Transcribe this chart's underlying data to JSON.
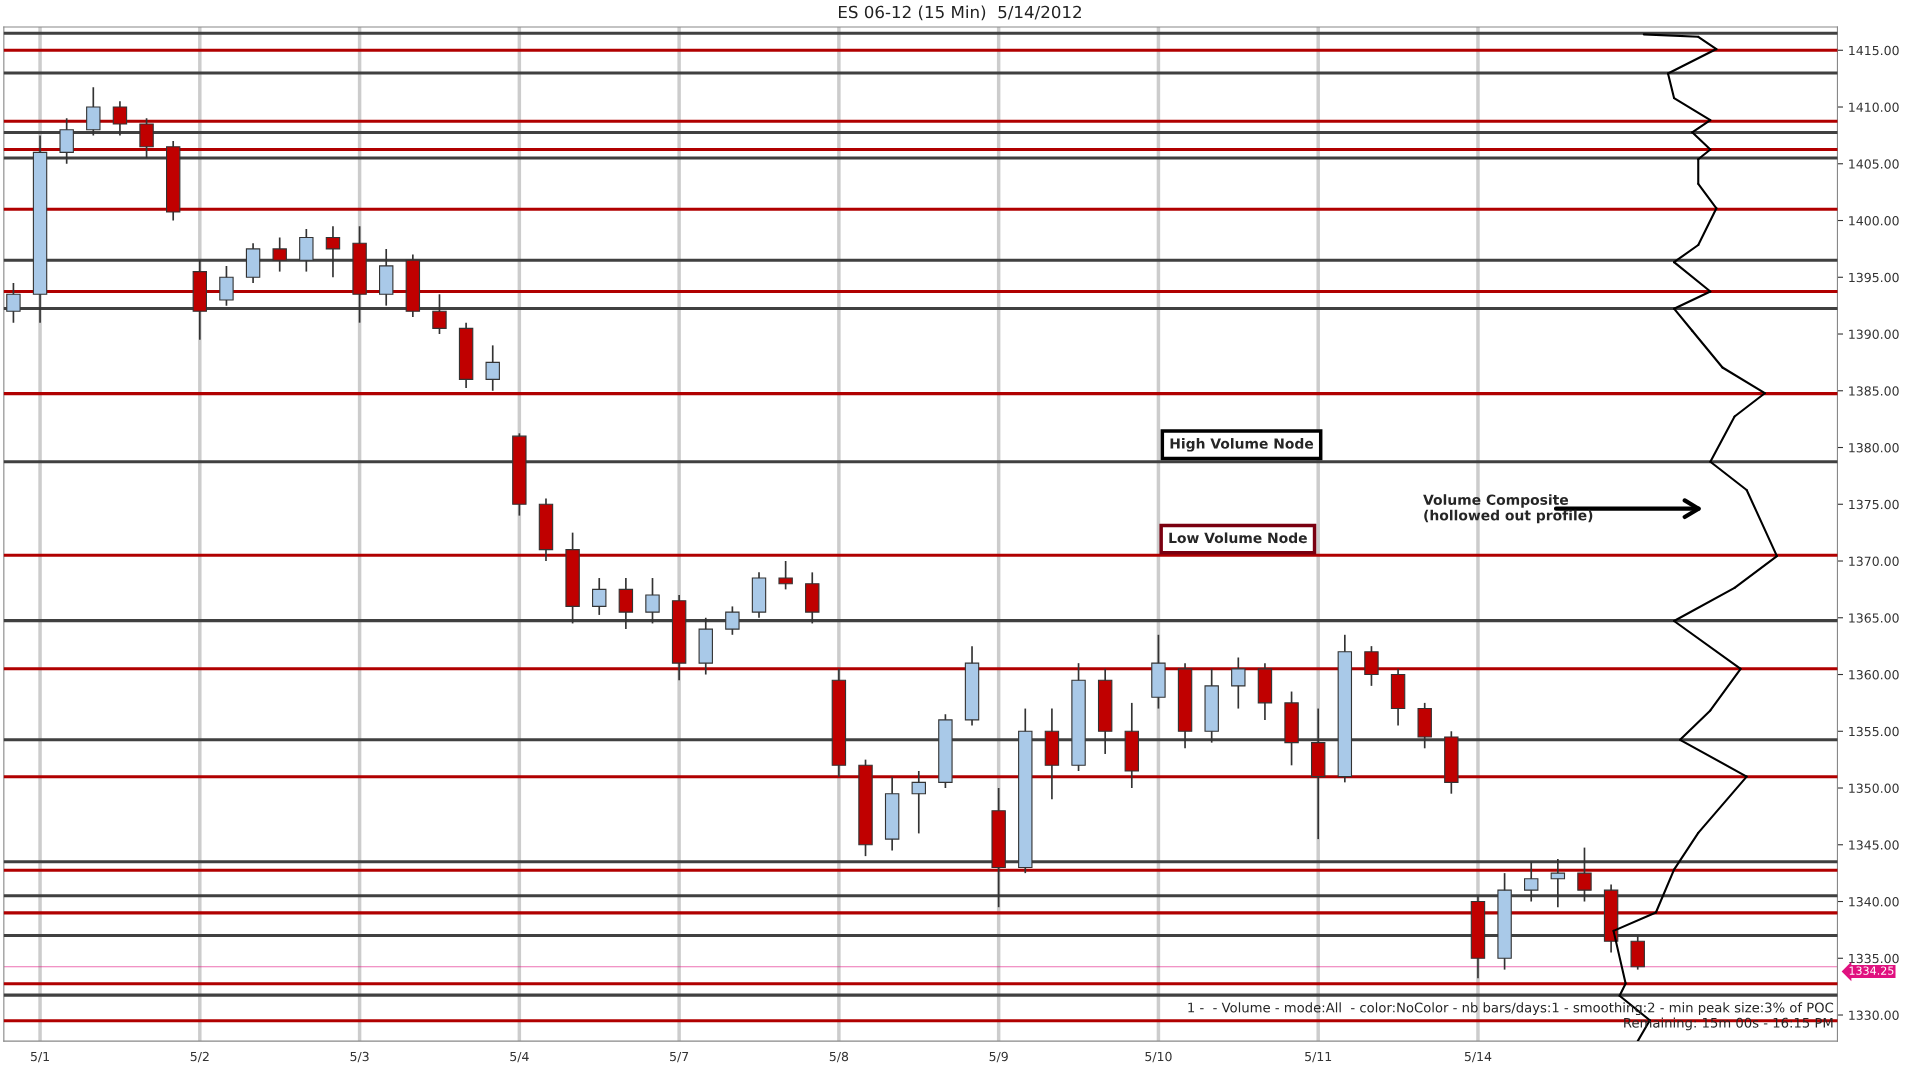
{
  "chart_data": {
    "type": "candlestick",
    "title": "ES 06-12 (15 Min)  5/14/2012",
    "categories": [
      null,
      "5/1",
      null,
      null,
      null,
      null,
      null,
      "5/2",
      null,
      null,
      null,
      null,
      null,
      "5/3",
      null,
      null,
      null,
      null,
      null,
      "5/4",
      null,
      null,
      null,
      null,
      null,
      "5/7",
      null,
      null,
      null,
      null,
      null,
      "5/8",
      null,
      null,
      null,
      null,
      null,
      "5/9",
      null,
      null,
      null,
      null,
      null,
      "5/10",
      null,
      null,
      null,
      null,
      null,
      "5/11",
      null,
      null,
      null,
      null,
      null,
      "5/14",
      null,
      null,
      null,
      null,
      null,
      null,
      null,
      null,
      null,
      null,
      null,
      null,
      null
    ],
    "ohlc": [
      [
        1392,
        1394.5,
        1391,
        1393.5
      ],
      [
        1393.5,
        1407.5,
        1391,
        1406
      ],
      [
        1406,
        1409,
        1405,
        1408
      ],
      [
        1408,
        1411.75,
        1407.5,
        1410
      ],
      [
        1410,
        1410.5,
        1407.5,
        1408.5
      ],
      [
        1408.5,
        1409,
        1405.5,
        1406.5
      ],
      [
        1406.5,
        1407,
        1400,
        1400.75
      ],
      [
        1395.5,
        1396.5,
        1389.5,
        1392
      ],
      [
        1393,
        1396,
        1392.5,
        1395
      ],
      [
        1395,
        1398,
        1394.5,
        1397.5
      ],
      [
        1397.5,
        1398.5,
        1395.5,
        1396.5
      ],
      [
        1396.5,
        1399.25,
        1395.5,
        1398.5
      ],
      [
        1398.5,
        1399.5,
        1395,
        1397.5
      ],
      [
        1398,
        1399.5,
        1391,
        1393.5
      ],
      [
        1393.5,
        1397.5,
        1392.5,
        1396
      ],
      [
        1396.5,
        1397,
        1391.5,
        1392
      ],
      [
        1392,
        1393.5,
        1390,
        1390.5
      ],
      [
        1390.5,
        1391,
        1385.25,
        1386
      ],
      [
        1386,
        1389,
        1385,
        1387.5
      ],
      [
        1381,
        1381.25,
        1374,
        1375
      ],
      [
        1375,
        1375.5,
        1370,
        1371
      ],
      [
        1371,
        1372.5,
        1364.5,
        1366
      ],
      [
        1366,
        1368.5,
        1365.25,
        1367.5
      ],
      [
        1367.5,
        1368.5,
        1364,
        1365.5
      ],
      [
        1365.5,
        1368.5,
        1364.5,
        1367
      ],
      [
        1366.5,
        1367,
        1359.5,
        1361
      ],
      [
        1361,
        1365,
        1360,
        1364
      ],
      [
        1364,
        1366,
        1363.5,
        1365.5
      ],
      [
        1365.5,
        1369,
        1365,
        1368.5
      ],
      [
        1368.5,
        1370,
        1367.5,
        1368
      ],
      [
        1368,
        1369,
        1364.5,
        1365.5
      ],
      [
        1359.5,
        1360.5,
        1351,
        1352
      ],
      [
        1352,
        1352.5,
        1344,
        1345
      ],
      [
        1345.5,
        1351,
        1344.5,
        1349.5
      ],
      [
        1349.5,
        1351.5,
        1346,
        1350.5
      ],
      [
        1350.5,
        1356.5,
        1350,
        1356
      ],
      [
        1356,
        1362.5,
        1355.5,
        1361
      ],
      [
        1348,
        1350,
        1339.5,
        1343
      ],
      [
        1343,
        1357,
        1342.5,
        1355
      ],
      [
        1355,
        1357,
        1349,
        1352
      ],
      [
        1352,
        1361,
        1351.5,
        1359.5
      ],
      [
        1359.5,
        1360.5,
        1353,
        1355
      ],
      [
        1355,
        1357.5,
        1350,
        1351.5
      ],
      [
        1358,
        1363.5,
        1357,
        1361
      ],
      [
        1360.5,
        1361,
        1353.5,
        1355
      ],
      [
        1355,
        1360.5,
        1354,
        1359
      ],
      [
        1359,
        1361.5,
        1357,
        1360.5
      ],
      [
        1360.5,
        1361,
        1356,
        1357.5
      ],
      [
        1357.5,
        1358.5,
        1352,
        1354
      ],
      [
        1354,
        1357,
        1345.5,
        1351
      ],
      [
        1351,
        1363.5,
        1350.5,
        1362
      ],
      [
        1362,
        1362.5,
        1359,
        1360
      ],
      [
        1360,
        1360.5,
        1355.5,
        1357
      ],
      [
        1357,
        1357.5,
        1353.5,
        1354.5
      ],
      [
        1354.5,
        1355,
        1349.5,
        1350.5
      ],
      [
        1340,
        1340.5,
        1333.25,
        1335
      ],
      [
        1335,
        1342.5,
        1334,
        1341
      ],
      [
        1341,
        1343.5,
        1340,
        1342
      ],
      [
        1342,
        1343.75,
        1339.5,
        1342.5
      ],
      [
        1342.5,
        1344.75,
        1340,
        1341
      ],
      [
        1341,
        1341.5,
        1335.5,
        1336.5
      ],
      [
        1336.5,
        1337,
        1334,
        1334.25
      ],
      null,
      null,
      null,
      null,
      null,
      null,
      null
    ],
    "colors": [
      "#a9c9e8",
      "#a9c9e8",
      "#a9c9e8",
      "#a9c9e8",
      "#c00000",
      "#c00000",
      "#c00000",
      "#c00000",
      "#a9c9e8",
      "#a9c9e8",
      "#c00000",
      "#a9c9e8",
      "#c00000",
      "#c00000",
      "#a9c9e8",
      "#c00000",
      "#c00000",
      "#c00000",
      "#a9c9e8",
      "#c00000",
      "#c00000",
      "#c00000",
      "#a9c9e8",
      "#c00000",
      "#a9c9e8",
      "#c00000",
      "#a9c9e8",
      "#a9c9e8",
      "#a9c9e8",
      "#c00000",
      "#c00000",
      "#c00000",
      "#c00000",
      "#a9c9e8",
      "#a9c9e8",
      "#a9c9e8",
      "#a9c9e8",
      "#c00000",
      "#a9c9e8",
      "#c00000",
      "#a9c9e8",
      "#c00000",
      "#c00000",
      "#a9c9e8",
      "#c00000",
      "#a9c9e8",
      "#a9c9e8",
      "#c00000",
      "#c00000",
      "#c00000",
      "#a9c9e8",
      "#c00000",
      "#c00000",
      "#c00000",
      "#c00000",
      "#c00000",
      "#a9c9e8",
      "#a9c9e8",
      "#a9c9e8",
      "#c00000",
      "#c00000",
      "#c00000",
      null,
      null,
      null,
      null,
      null,
      null,
      null
    ],
    "ylim": [
      1327.7,
      1417.05
    ],
    "yticks": [
      {
        "value": 1330,
        "label": "1330.00"
      },
      {
        "value": 1335,
        "label": "1335.00"
      },
      {
        "value": 1340,
        "label": "1340.00"
      },
      {
        "value": 1345,
        "label": "1345.00"
      },
      {
        "value": 1350,
        "label": "1350.00"
      },
      {
        "value": 1355,
        "label": "1355.00"
      },
      {
        "value": 1360,
        "label": "1360.00"
      },
      {
        "value": 1365,
        "label": "1365.00"
      },
      {
        "value": 1370,
        "label": "1370.00"
      },
      {
        "value": 1375,
        "label": "1375.00"
      },
      {
        "value": 1380,
        "label": "1380.00"
      },
      {
        "value": 1385,
        "label": "1385.00"
      },
      {
        "value": 1390,
        "label": "1390.00"
      },
      {
        "value": 1395,
        "label": "1395.00"
      },
      {
        "value": 1400,
        "label": "1400.00"
      },
      {
        "value": 1405,
        "label": "1405.00"
      },
      {
        "value": 1410,
        "label": "1410.00"
      },
      {
        "value": 1415,
        "label": "1415.00"
      }
    ],
    "grid": "x",
    "ref_lines": [
      {
        "axis": "y",
        "value": 1415,
        "color": "#b00000"
      },
      {
        "axis": "y",
        "value": 1408.75,
        "color": "#b00000"
      },
      {
        "axis": "y",
        "value": 1406.25,
        "color": "#b00000"
      },
      {
        "axis": "y",
        "value": 1401,
        "color": "#b00000"
      },
      {
        "axis": "y",
        "value": 1393.75,
        "color": "#b00000"
      },
      {
        "axis": "y",
        "value": 1384.75,
        "color": "#b00000"
      },
      {
        "axis": "y",
        "value": 1370.5,
        "color": "#b00000"
      },
      {
        "axis": "y",
        "value": 1360.5,
        "color": "#b00000"
      },
      {
        "axis": "y",
        "value": 1351,
        "color": "#b00000"
      },
      {
        "axis": "y",
        "value": 1342.75,
        "color": "#b00000"
      },
      {
        "axis": "y",
        "value": 1339,
        "color": "#b00000"
      },
      {
        "axis": "y",
        "value": 1332.75,
        "color": "#b00000"
      },
      {
        "axis": "y",
        "value": 1329.5,
        "color": "#b00000"
      },
      {
        "axis": "y",
        "value": 1416.5,
        "color": "#404040"
      },
      {
        "axis": "y",
        "value": 1413,
        "color": "#404040"
      },
      {
        "axis": "y",
        "value": 1407.75,
        "color": "#404040"
      },
      {
        "axis": "y",
        "value": 1405.5,
        "color": "#404040"
      },
      {
        "axis": "y",
        "value": 1396.5,
        "color": "#404040"
      },
      {
        "axis": "y",
        "value": 1392.25,
        "color": "#404040"
      },
      {
        "axis": "y",
        "value": 1378.75,
        "color": "#404040"
      },
      {
        "axis": "y",
        "value": 1364.75,
        "color": "#404040"
      },
      {
        "axis": "y",
        "value": 1354.25,
        "color": "#404040"
      },
      {
        "axis": "y",
        "value": 1343.5,
        "color": "#404040"
      },
      {
        "axis": "y",
        "value": 1340.5,
        "color": "#404040"
      },
      {
        "axis": "y",
        "value": 1337,
        "color": "#404040"
      },
      {
        "axis": "y",
        "value": 1331.75,
        "color": "#404040"
      },
      {
        "axis": "y",
        "value": 1334.25,
        "label": "1334.25",
        "color": "#e0117f"
      }
    ],
    "annotations": [
      "High Volume Node",
      "Low Volume Node",
      "Volume Composite\n(hollowed out profile)",
      "1 -  - Volume - mode:All  - color:NoColor - nb bars/days:1 - smoothing:2 - min peak size:3% of POC",
      "Remaining: 15m 00s - 16:15 PM"
    ]
  }
}
